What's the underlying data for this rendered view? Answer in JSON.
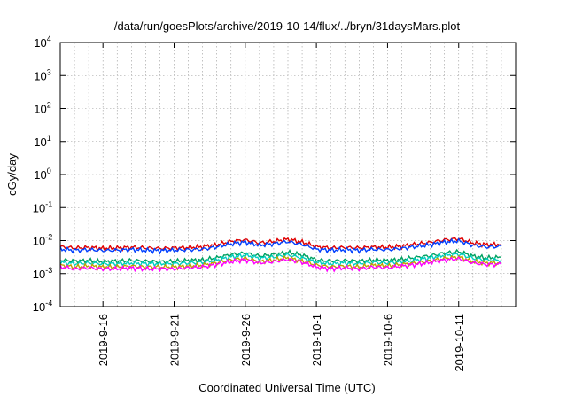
{
  "chart_data": {
    "type": "line",
    "title": "/data/run/goesPlots/archive/2019-10-14/flux/../bryn/31daysMars.plot",
    "xlabel": "Coordinated Universal Time (UTC)",
    "ylabel": "cGy/day",
    "yscale": "log",
    "ylim_exponents": [
      -4,
      4
    ],
    "y_ticks": [
      {
        "base": "10",
        "exp": "-4"
      },
      {
        "base": "10",
        "exp": "-3"
      },
      {
        "base": "10",
        "exp": "-2"
      },
      {
        "base": "10",
        "exp": "-1"
      },
      {
        "base": "10",
        "exp": "0"
      },
      {
        "base": "10",
        "exp": "1"
      },
      {
        "base": "10",
        "exp": "2"
      },
      {
        "base": "10",
        "exp": "3"
      },
      {
        "base": "10",
        "exp": "4"
      }
    ],
    "x_range": [
      "2019-09-13",
      "2019-10-15"
    ],
    "x_ticks": [
      "2019-9-16",
      "2019-9-21",
      "2019-9-26",
      "2019-10-1",
      "2019-10-6",
      "2019-10-11"
    ],
    "x_tick_dates": [
      "2019-09-16",
      "2019-09-21",
      "2019-09-26",
      "2019-10-01",
      "2019-10-06",
      "2019-10-11"
    ],
    "grid": true,
    "x_grid_days": 1,
    "series": [
      {
        "color": "#e00000",
        "values": [
          0.0065,
          0.006,
          0.0062,
          0.0058,
          0.006,
          0.0063,
          0.006,
          0.0058,
          0.006,
          0.0062,
          0.0065,
          0.0075,
          0.0095,
          0.0105,
          0.0085,
          0.0095,
          0.011,
          0.009,
          0.0065,
          0.006,
          0.0062,
          0.006,
          0.0064,
          0.0062,
          0.0068,
          0.0078,
          0.0088,
          0.0105,
          0.0115,
          0.0085,
          0.0075,
          0.0078
        ]
      },
      {
        "color": "#0040ff",
        "values": [
          0.0055,
          0.0051,
          0.0053,
          0.005,
          0.0051,
          0.0054,
          0.0051,
          0.005,
          0.0051,
          0.0053,
          0.0055,
          0.0064,
          0.008,
          0.009,
          0.0072,
          0.008,
          0.0093,
          0.0076,
          0.0055,
          0.0051,
          0.0053,
          0.0051,
          0.0054,
          0.0053,
          0.0058,
          0.0066,
          0.0075,
          0.009,
          0.0098,
          0.0072,
          0.0064,
          0.0066
        ]
      },
      {
        "color": "#00a060",
        "values": [
          0.0026,
          0.0024,
          0.0025,
          0.0023,
          0.0024,
          0.0025,
          0.0024,
          0.0023,
          0.0024,
          0.0025,
          0.0026,
          0.003,
          0.0038,
          0.0042,
          0.0034,
          0.0038,
          0.0044,
          0.0036,
          0.0026,
          0.0024,
          0.0025,
          0.0024,
          0.0026,
          0.0025,
          0.0027,
          0.0031,
          0.0035,
          0.0042,
          0.0046,
          0.0034,
          0.003,
          0.0031
        ]
      },
      {
        "color": "#00d0c0",
        "values": [
          0.0022,
          0.002,
          0.0021,
          0.002,
          0.002,
          0.0021,
          0.002,
          0.002,
          0.002,
          0.0021,
          0.0022,
          0.0026,
          0.0032,
          0.0036,
          0.0029,
          0.0032,
          0.0037,
          0.003,
          0.0022,
          0.002,
          0.0021,
          0.002,
          0.0022,
          0.0021,
          0.0023,
          0.0026,
          0.003,
          0.0036,
          0.0039,
          0.0029,
          0.0026,
          0.0026
        ]
      },
      {
        "color": "#c0a000",
        "values": [
          0.0018,
          0.0016,
          0.0017,
          0.0016,
          0.0016,
          0.0017,
          0.0016,
          0.0016,
          0.0016,
          0.0017,
          0.0018,
          0.0021,
          0.0026,
          0.0029,
          0.0023,
          0.0026,
          0.003,
          0.0024,
          0.0018,
          0.0016,
          0.0017,
          0.0016,
          0.0018,
          0.0017,
          0.0019,
          0.0021,
          0.0024,
          0.0029,
          0.0032,
          0.0023,
          0.0021,
          0.0021
        ]
      },
      {
        "color": "#ff00ff",
        "values": [
          0.0016,
          0.0014,
          0.0015,
          0.0014,
          0.0014,
          0.0015,
          0.0014,
          0.0014,
          0.0014,
          0.0015,
          0.0016,
          0.0019,
          0.0023,
          0.0026,
          0.0021,
          0.0023,
          0.0027,
          0.0022,
          0.0016,
          0.0014,
          0.0015,
          0.0014,
          0.0016,
          0.0015,
          0.0017,
          0.0019,
          0.0022,
          0.0026,
          0.0028,
          0.0021,
          0.0019,
          0.0019
        ]
      }
    ]
  }
}
